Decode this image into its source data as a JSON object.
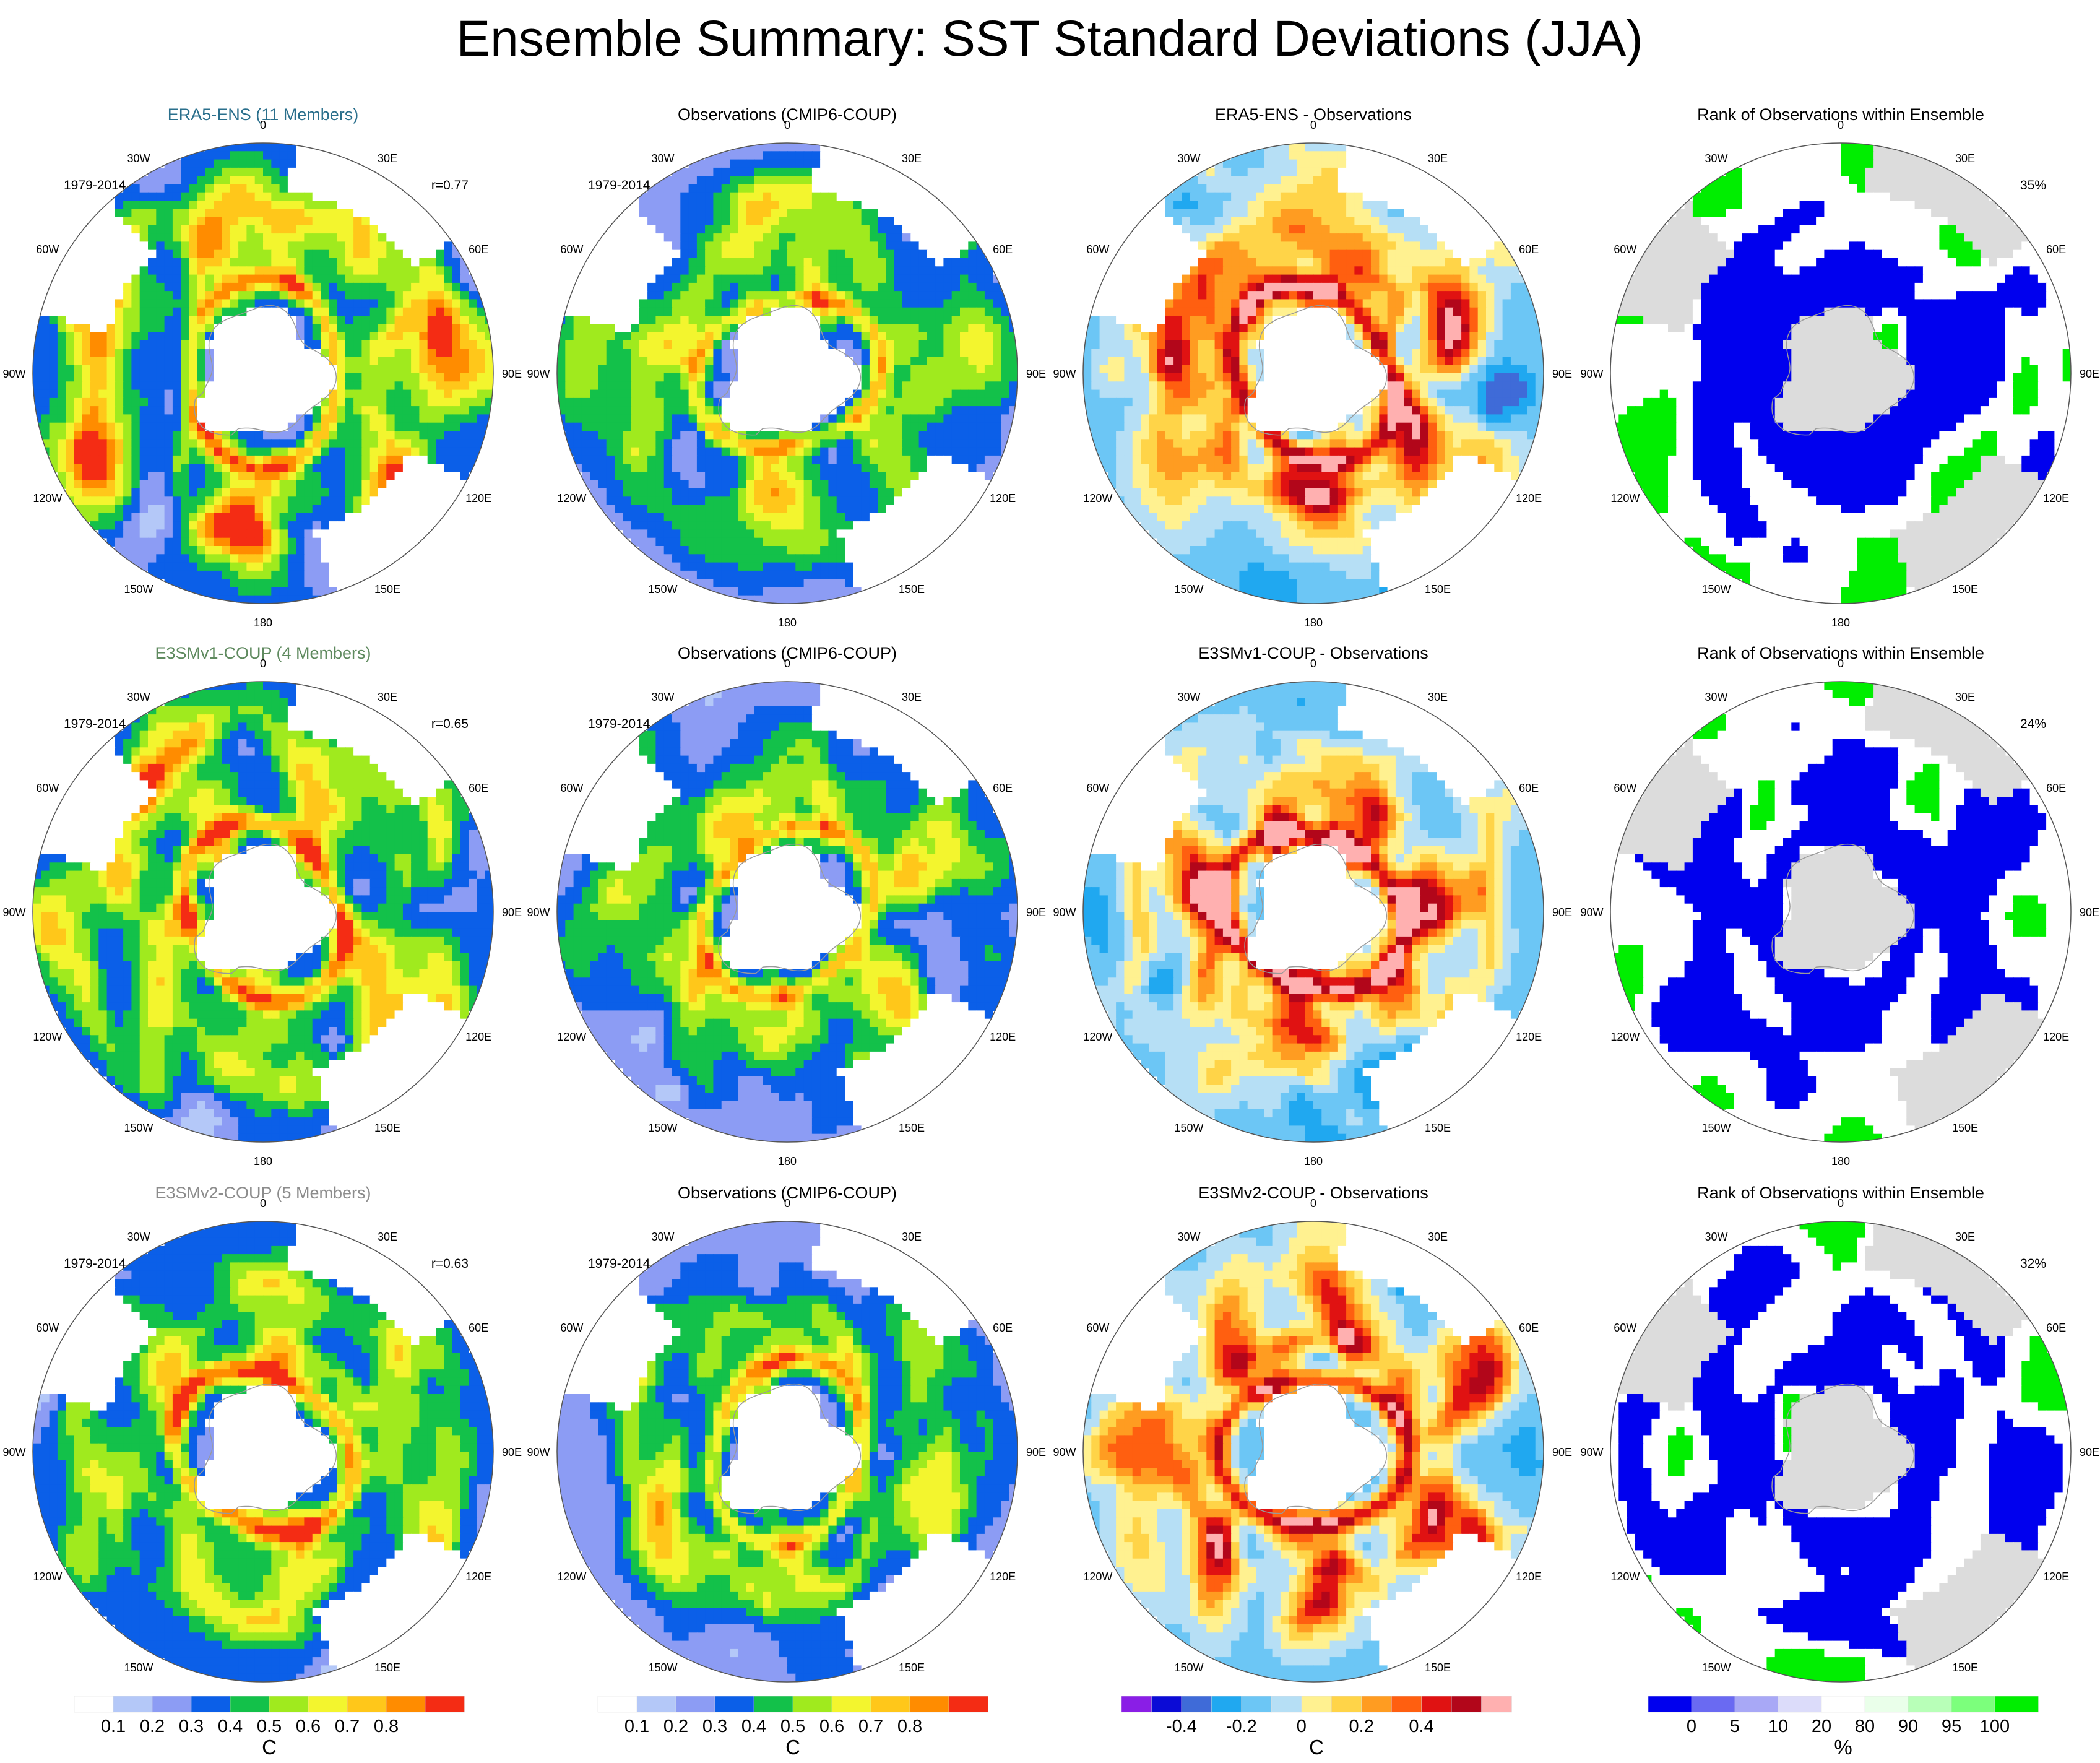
{
  "title": "Ensemble Summary: SST Standard Deviations (JJA)",
  "colors": {
    "land": "#ffffff",
    "gray_land": "#dcdcdc",
    "std_scale": [
      "#ffffff",
      "#b4c8f8",
      "#8c9cf4",
      "#0b5fe8",
      "#13c14a",
      "#a0ea1e",
      "#f3f52e",
      "#ffc71a",
      "#ff8c00",
      "#f42c14"
    ],
    "diff_scale": [
      "#8a1ee6",
      "#0b0bd6",
      "#3f6bd8",
      "#20a8f0",
      "#6cc6f5",
      "#b6dff5",
      "#fff190",
      "#ffd448",
      "#ff9c21",
      "#ff5f10",
      "#e01212",
      "#b2061a",
      "#ffb0b0"
    ],
    "rank_scale": [
      "#0000ee",
      "#6a6af2",
      "#a8a8f6",
      "#dcdcfa",
      "#ffffff",
      "#eaffea",
      "#b8ffb8",
      "#7cff7c",
      "#00ee00"
    ]
  },
  "chart_data": [
    {
      "type": "heatmap",
      "panel": "r1c1",
      "title": "ERA5-ENS (11 Members)",
      "title_color": "#2a6f8c",
      "period": "1979-2014",
      "stat": "r=0.77",
      "kind": "std",
      "seed": 11
    },
    {
      "type": "heatmap",
      "panel": "r1c2",
      "title": "Observations (CMIP6-COUP)",
      "title_color": "#000000",
      "period": "1979-2014",
      "stat": "",
      "kind": "obs",
      "seed": 21
    },
    {
      "type": "heatmap",
      "panel": "r1c3",
      "title": "ERA5-ENS - Observations",
      "title_color": "#000000",
      "period": "",
      "stat": "",
      "kind": "diff",
      "seed": 31
    },
    {
      "type": "heatmap",
      "panel": "r1c4",
      "title": "Rank of Observations within Ensemble",
      "title_color": "#000000",
      "period": "",
      "stat": "35%",
      "kind": "rank",
      "seed": 41
    },
    {
      "type": "heatmap",
      "panel": "r2c1",
      "title": "E3SMv1-COUP (4 Members)",
      "title_color": "#5f8a5f",
      "period": "1979-2014",
      "stat": "r=0.65",
      "kind": "std",
      "seed": 12
    },
    {
      "type": "heatmap",
      "panel": "r2c2",
      "title": "Observations (CMIP6-COUP)",
      "title_color": "#000000",
      "period": "1979-2014",
      "stat": "",
      "kind": "obs",
      "seed": 22
    },
    {
      "type": "heatmap",
      "panel": "r2c3",
      "title": "E3SMv1-COUP - Observations",
      "title_color": "#000000",
      "period": "",
      "stat": "",
      "kind": "diff",
      "seed": 32
    },
    {
      "type": "heatmap",
      "panel": "r2c4",
      "title": "Rank of Observations within Ensemble",
      "title_color": "#000000",
      "period": "",
      "stat": "24%",
      "kind": "rank",
      "seed": 42
    },
    {
      "type": "heatmap",
      "panel": "r3c1",
      "title": "E3SMv2-COUP (5 Members)",
      "title_color": "#8c8c8c",
      "period": "1979-2014",
      "stat": "r=0.63",
      "kind": "std",
      "seed": 13
    },
    {
      "type": "heatmap",
      "panel": "r3c2",
      "title": "Observations (CMIP6-COUP)",
      "title_color": "#000000",
      "period": "1979-2014",
      "stat": "",
      "kind": "obs",
      "seed": 23
    },
    {
      "type": "heatmap",
      "panel": "r3c3",
      "title": "E3SMv2-COUP - Observations",
      "title_color": "#000000",
      "period": "",
      "stat": "",
      "kind": "diff",
      "seed": 33
    },
    {
      "type": "heatmap",
      "panel": "r3c4",
      "title": "Rank of Observations within Ensemble",
      "title_color": "#000000",
      "period": "",
      "stat": "32%",
      "kind": "rank",
      "seed": 43
    }
  ],
  "lon_labels": [
    "0",
    "30E",
    "60E",
    "90E",
    "120E",
    "150E",
    "180",
    "150W",
    "120W",
    "90W",
    "60W",
    "30W"
  ],
  "colorbars": [
    {
      "kind": "std",
      "labels": [
        "0.1",
        "0.2",
        "0.3",
        "0.4",
        "0.5",
        "0.6",
        "0.7",
        "0.8"
      ],
      "unit": "C"
    },
    {
      "kind": "std",
      "labels": [
        "0.1",
        "0.2",
        "0.3",
        "0.4",
        "0.5",
        "0.6",
        "0.7",
        "0.8"
      ],
      "unit": "C"
    },
    {
      "kind": "diff",
      "labels": [
        "-0.4",
        "-0.2",
        "0",
        "0.2",
        "0.4"
      ],
      "unit": "C"
    },
    {
      "kind": "rank",
      "labels": [
        "0",
        "5",
        "10",
        "20",
        "80",
        "90",
        "95",
        "100"
      ],
      "unit": "%"
    }
  ]
}
